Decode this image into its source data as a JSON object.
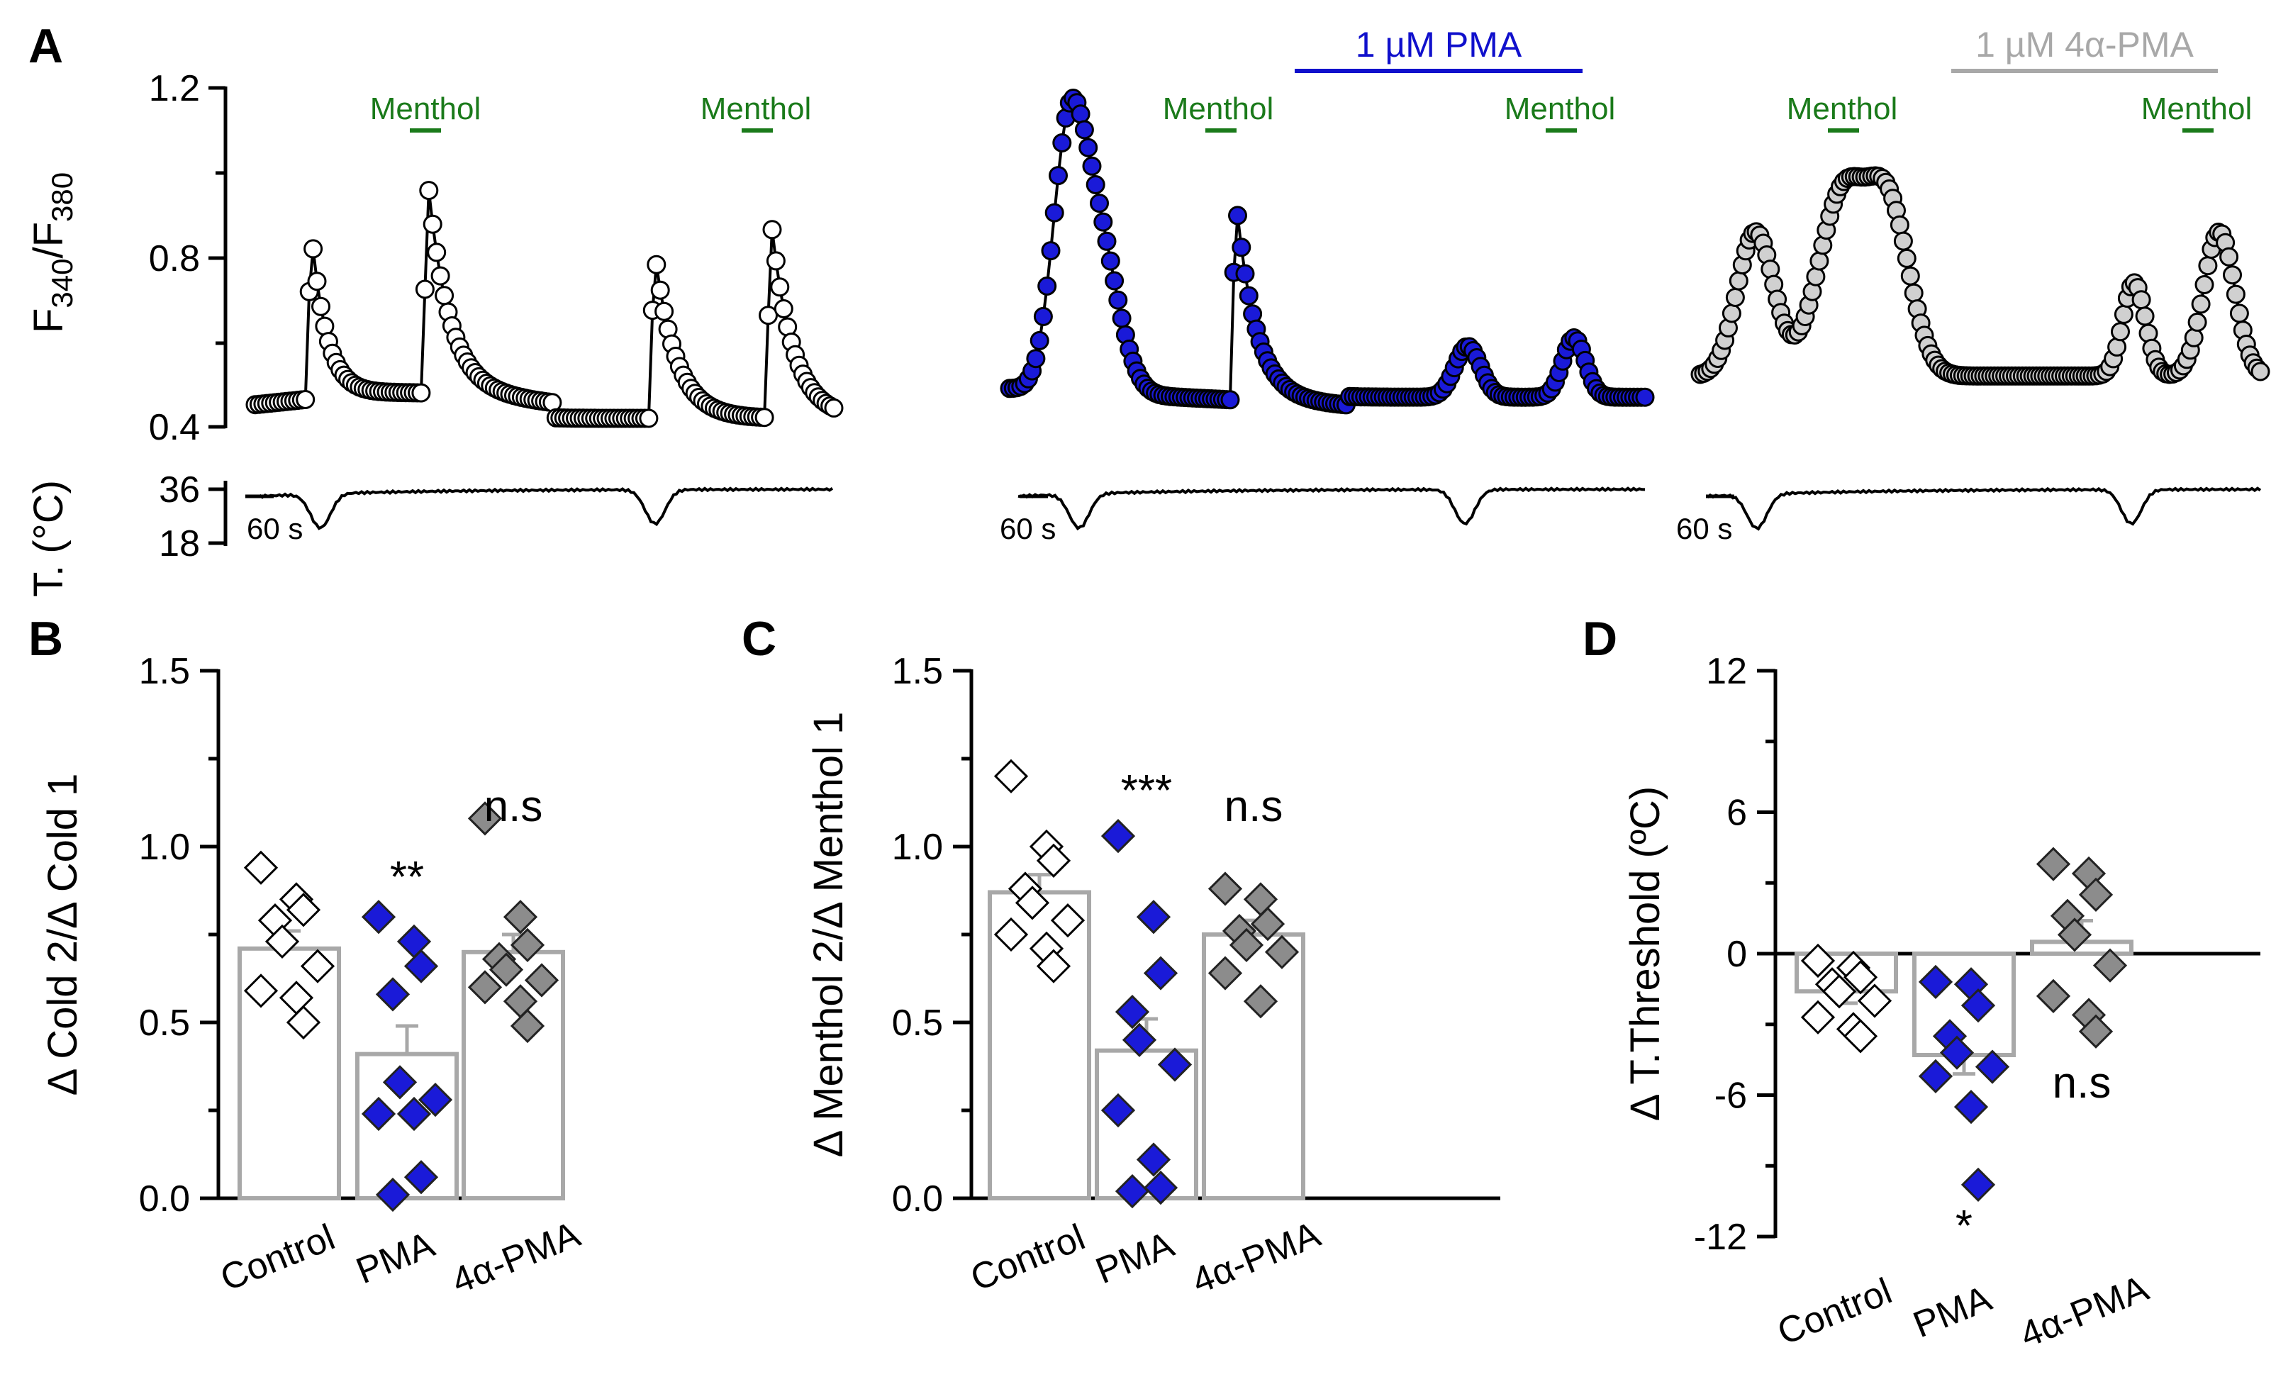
{
  "colors": {
    "menthol": "#1a7a1a",
    "pma": "#1010cc",
    "alpha_pma": "#a8a8a8",
    "control_fill": "#ffffff",
    "pma_fill": "#1a1ad8",
    "alpha_fill": "#8c8c8c",
    "bar": "#a8a8a8",
    "trace": "#000000"
  },
  "panelA": {
    "label": "A",
    "ylabel_main": "F",
    "ylabel_sub1": "340",
    "ylabel_slash": "/F",
    "ylabel_sub2": "380",
    "yticks": [
      "1.2",
      "0.8",
      "0.4"
    ],
    "temp_label": "T. (°C)",
    "temp_ticks": [
      "36",
      "18"
    ],
    "scale_label": "60 s",
    "menthol_label": "Menthol",
    "pma_label": "1 µM PMA",
    "alpha_pma_label": "1 µM 4α-PMA"
  },
  "chart_data": [
    {
      "panel": "B",
      "type": "bar",
      "title": "",
      "xlabel": "",
      "ylabel": "Δ Cold 2/Δ Cold 1",
      "categories": [
        "Control",
        "PMA",
        "4α-PMA"
      ],
      "values": [
        0.71,
        0.41,
        0.7
      ],
      "sem": [
        0.05,
        0.08,
        0.05
      ],
      "points": [
        [
          0.94,
          0.85,
          0.82,
          0.79,
          0.73,
          0.66,
          0.59,
          0.57,
          0.5
        ],
        [
          0.8,
          0.73,
          0.66,
          0.58,
          0.33,
          0.28,
          0.24,
          0.24,
          0.06,
          0.01
        ],
        [
          1.08,
          0.8,
          0.72,
          0.68,
          0.65,
          0.62,
          0.6,
          0.56,
          0.49
        ]
      ],
      "significance": [
        "",
        "**",
        "n.s"
      ],
      "ylim": [
        0,
        1.5
      ],
      "yticks": [
        "0.0",
        "0.5",
        "1.0",
        "1.5"
      ]
    },
    {
      "panel": "C",
      "type": "bar",
      "title": "",
      "xlabel": "",
      "ylabel": "Δ Menthol 2/Δ Menthol 1",
      "categories": [
        "Control",
        "PMA",
        "4α-PMA"
      ],
      "values": [
        0.87,
        0.42,
        0.75
      ],
      "sem": [
        0.05,
        0.09,
        0.04
      ],
      "points": [
        [
          1.2,
          1.0,
          0.96,
          0.88,
          0.84,
          0.79,
          0.75,
          0.71,
          0.66
        ],
        [
          1.03,
          0.8,
          0.64,
          0.53,
          0.45,
          0.38,
          0.25,
          0.11,
          0.03,
          0.02
        ],
        [
          0.88,
          0.85,
          0.78,
          0.76,
          0.72,
          0.7,
          0.64,
          0.56
        ]
      ],
      "significance": [
        "",
        "***",
        "n.s"
      ],
      "ylim": [
        0,
        1.5
      ],
      "yticks": [
        "0.0",
        "0.5",
        "1.0",
        "1.5"
      ]
    },
    {
      "panel": "D",
      "type": "bar",
      "title": "",
      "xlabel": "",
      "ylabel": "Δ T.Threshold (ºC)",
      "categories": [
        "Control",
        "PMA",
        "4α-PMA"
      ],
      "values": [
        -1.6,
        -4.3,
        0.5
      ],
      "sem": [
        0.5,
        0.8,
        0.9
      ],
      "points": [
        [
          -0.3,
          -0.6,
          -1.0,
          -1.3,
          -1.6,
          -2.0,
          -2.7,
          -3.2,
          -3.5
        ],
        [
          -1.2,
          -1.3,
          -2.2,
          -3.5,
          -4.2,
          -4.8,
          -5.2,
          -6.5,
          -9.8
        ],
        [
          3.8,
          3.4,
          2.5,
          1.6,
          0.8,
          -0.5,
          -1.8,
          -2.6,
          -3.3
        ]
      ],
      "significance": [
        "",
        "*",
        "n.s"
      ],
      "ylim": [
        -12,
        12
      ],
      "yticks": [
        "12",
        "6",
        "0",
        "-6",
        "-12"
      ]
    }
  ]
}
